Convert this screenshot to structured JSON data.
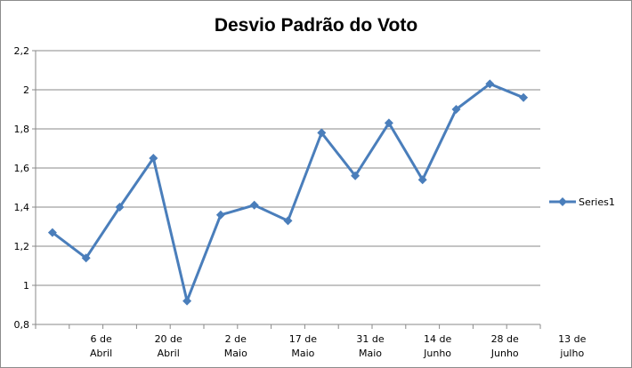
{
  "chart_data": {
    "type": "line",
    "title": "Desvio Padrão do Voto",
    "xlabel": "",
    "ylabel": "",
    "ylim": [
      0.8,
      2.2
    ],
    "y_ticks": [
      "0,8",
      "1",
      "1,2",
      "1,4",
      "1,6",
      "1,8",
      "2",
      "2,2"
    ],
    "x_tick_labels": [
      [
        "6 de",
        "Abril"
      ],
      [
        "20 de",
        "Abril"
      ],
      [
        "2 de",
        "Maio"
      ],
      [
        "17 de",
        "Maio"
      ],
      [
        "31 de",
        "Maio"
      ],
      [
        "14 de",
        "Junho"
      ],
      [
        "28 de",
        "Junho"
      ],
      [
        "13 de",
        "julho"
      ]
    ],
    "grid": true,
    "legend_position": "right",
    "series": [
      {
        "name": "Series1",
        "color": "#4a7ebb",
        "values": [
          1.27,
          1.14,
          1.4,
          1.65,
          0.92,
          1.36,
          1.41,
          1.33,
          1.78,
          1.56,
          1.83,
          1.54,
          1.9,
          2.03,
          1.96
        ]
      }
    ]
  }
}
